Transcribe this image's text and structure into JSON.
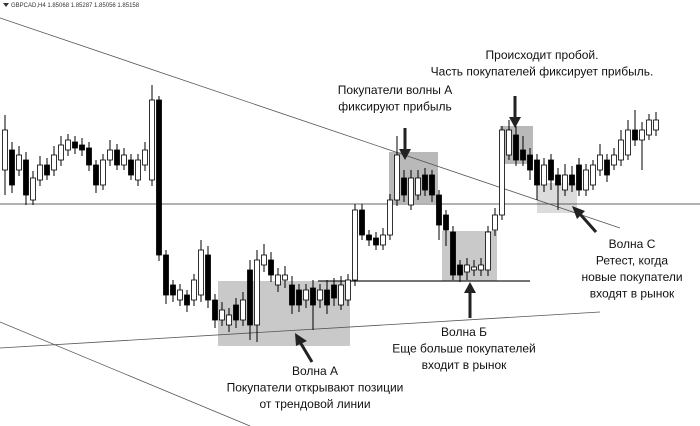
{
  "chart_data": {
    "type": "candlestick",
    "title": "GBPCAD,H4  1.85068 1.85287 1.85056 1.85158",
    "ylim": [
      0,
      414
    ],
    "up_color": "#ffffff",
    "down_color": "#000000",
    "open": [
      256,
      276,
      256,
      266,
      226,
      246,
      261,
      256,
      266,
      276,
      284,
      281,
      278,
      261,
      241,
      266,
      276,
      261,
      266,
      246,
      261,
      246,
      326,
      171,
      141,
      126,
      131,
      126,
      131,
      171,
      126,
      106,
      101,
      121,
      106,
      156,
      101,
      161,
      166,
      141,
      146,
      141,
      136,
      126,
      138,
      126,
      136,
      141,
      121,
      126,
      146,
      216,
      191,
      188,
      181,
      191,
      226,
      248,
      221,
      231,
      251,
      251,
      231,
      211,
      194,
      161,
      154,
      156,
      156,
      156,
      196,
      211,
      271,
      291,
      276,
      271,
      266,
      241,
      266,
      251,
      236,
      251,
      261,
      236,
      241,
      256,
      266,
      261,
      266,
      271,
      296,
      286,
      291,
      296
    ],
    "high": [
      311,
      284,
      280,
      274,
      255,
      270,
      268,
      280,
      290,
      292,
      290,
      288,
      284,
      266,
      272,
      286,
      282,
      278,
      272,
      272,
      284,
      341,
      330,
      176,
      146,
      142,
      136,
      152,
      186,
      180,
      132,
      124,
      118,
      128,
      134,
      166,
      176,
      182,
      174,
      158,
      160,
      150,
      142,
      142,
      146,
      142,
      146,
      148,
      150,
      152,
      222,
      222,
      196,
      194,
      198,
      232,
      290,
      256,
      256,
      256,
      258,
      256,
      236,
      216,
      200,
      166,
      168,
      166,
      168,
      200,
      218,
      300,
      306,
      300,
      290,
      278,
      272,
      268,
      272,
      258,
      262,
      260,
      268,
      262,
      266,
      282,
      272,
      278,
      296,
      306,
      316,
      304,
      312,
      314
    ],
    "low": [
      231,
      233,
      250,
      221,
      221,
      240,
      246,
      250,
      260,
      270,
      272,
      270,
      255,
      233,
      236,
      260,
      256,
      256,
      246,
      240,
      255,
      240,
      165,
      122,
      124,
      120,
      114,
      120,
      124,
      118,
      98,
      100,
      94,
      98,
      100,
      86,
      84,
      154,
      144,
      134,
      138,
      112,
      114,
      118,
      96,
      118,
      112,
      120,
      116,
      120,
      140,
      186,
      180,
      176,
      176,
      186,
      220,
      224,
      216,
      226,
      230,
      224,
      186,
      180,
      146,
      144,
      146,
      150,
      150,
      150,
      190,
      206,
      266,
      260,
      260,
      246,
      226,
      234,
      236,
      216,
      230,
      234,
      230,
      230,
      236,
      250,
      244,
      256,
      260,
      266,
      280,
      256,
      286,
      290
    ],
    "close": [
      296,
      241,
      271,
      231,
      248,
      261,
      251,
      271,
      281,
      286,
      278,
      276,
      261,
      241,
      266,
      276,
      261,
      271,
      251,
      266,
      276,
      326,
      171,
      131,
      131,
      136,
      121,
      146,
      176,
      126,
      106,
      116,
      111,
      106,
      126,
      101,
      166,
      171,
      151,
      151,
      151,
      121,
      121,
      136,
      121,
      136,
      121,
      128,
      141,
      146,
      216,
      191,
      186,
      181,
      191,
      226,
      271,
      231,
      248,
      248,
      236,
      231,
      201,
      196,
      151,
      151,
      161,
      159,
      161,
      194,
      211,
      296,
      296,
      266,
      266,
      256,
      241,
      261,
      246,
      241,
      251,
      241,
      236,
      256,
      261,
      271,
      251,
      271,
      286,
      296,
      286,
      296,
      306,
      306
    ],
    "annotations": [
      {
        "lines": [
          "Происходит пробой.",
          "Часть покупателей фиксирует прибыль."
        ]
      },
      {
        "lines": [
          "Покупатели волны А",
          "фиксируют прибыль"
        ]
      },
      {
        "lines": [
          "Волна С",
          "Ретест, когда",
          "новые покупатели",
          "входят в рынок"
        ]
      },
      {
        "lines": [
          "Волна Б",
          "Еще больше покупателей",
          "входит в рынок"
        ]
      },
      {
        "lines": [
          "Волна А",
          "Покупатели открывают позиции",
          "от трендовой линии"
        ]
      }
    ]
  }
}
